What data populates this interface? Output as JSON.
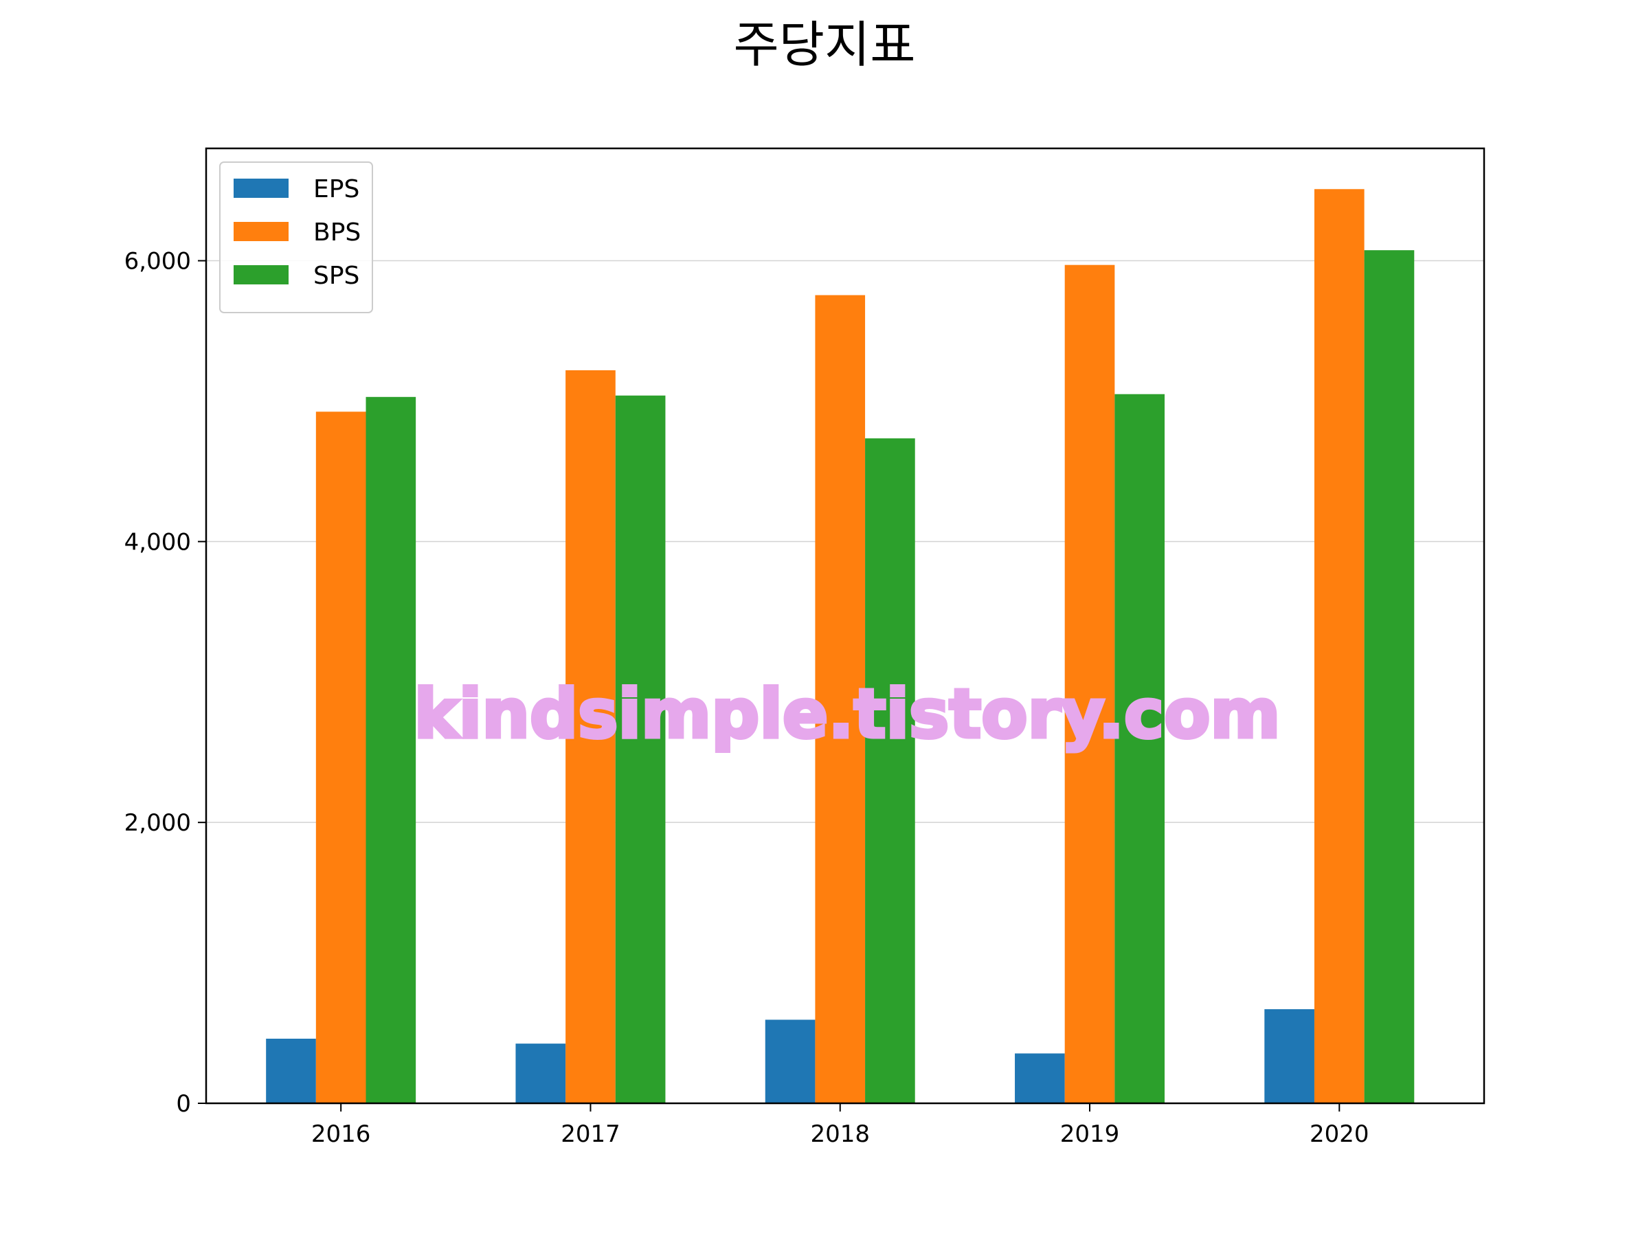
{
  "chart_data": {
    "type": "bar",
    "title": "주당지표",
    "xlabel": "",
    "ylabel": "",
    "categories": [
      "2016",
      "2017",
      "2018",
      "2019",
      "2020"
    ],
    "series": [
      {
        "name": "EPS",
        "color": "#1f77b4",
        "values": [
          460,
          425,
          595,
          355,
          670
        ]
      },
      {
        "name": "BPS",
        "color": "#ff7f0e",
        "values": [
          4925,
          5220,
          5755,
          5970,
          6510
        ]
      },
      {
        "name": "SPS",
        "color": "#2ca02c",
        "values": [
          5030,
          5040,
          4735,
          5050,
          6075
        ]
      }
    ],
    "ylim": [
      0,
      6800
    ],
    "yticks": [
      0,
      2000,
      4000,
      6000
    ],
    "ytick_labels": [
      "0",
      "2,000",
      "4,000",
      "6,000"
    ],
    "grid": "horizontal",
    "legend_position": "top-left",
    "watermark": "kindsimple.tistory.com"
  }
}
